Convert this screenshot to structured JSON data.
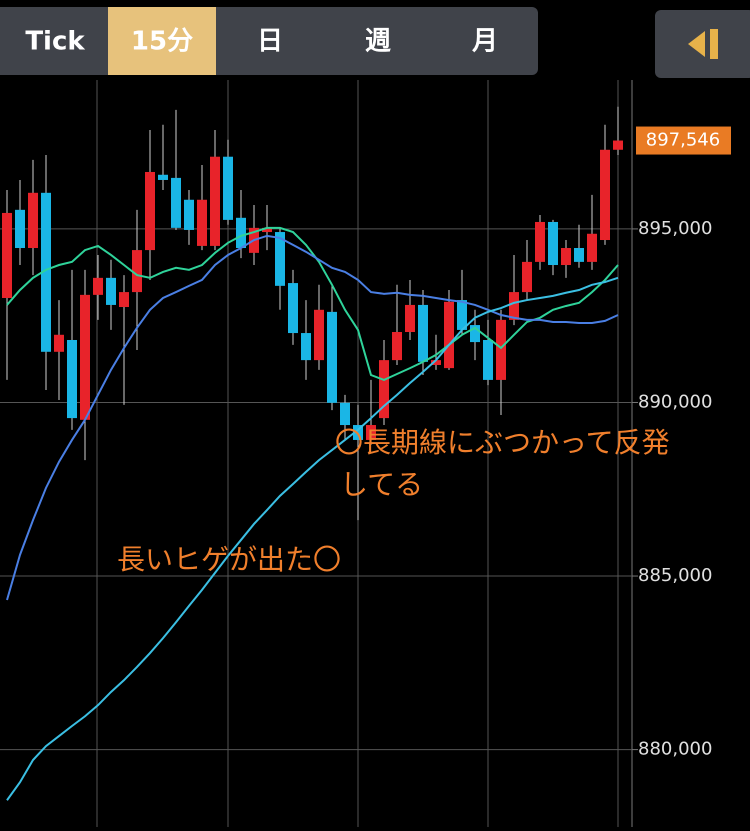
{
  "toolbar": {
    "tabs": [
      "Tick",
      "15分",
      "日",
      "週",
      "月"
    ]
  },
  "chart_data": {
    "type": "candlestick",
    "ylim": [
      877770,
      899290
    ],
    "yticks": [
      {
        "value": 895000,
        "label": "895,000"
      },
      {
        "value": 890000,
        "label": "890,000"
      },
      {
        "value": 885000,
        "label": "885,000"
      },
      {
        "value": 880000,
        "label": "880,000"
      }
    ],
    "grid": true,
    "up_color": "#e8232a",
    "down_color": "#1ab6e6",
    "open": [
      893010,
      895550,
      894450,
      896040,
      891460,
      891800,
      889500,
      893100,
      893590,
      892750,
      893180,
      894390,
      896560,
      896470,
      895840,
      894510,
      894510,
      897080,
      895320,
      894310,
      894910,
      894910,
      893440,
      892000,
      891220,
      892610,
      889990,
      889350,
      888920,
      889550,
      891220,
      892030,
      892810,
      891080,
      890990,
      892950,
      892230,
      891800,
      890650,
      892380,
      893180,
      894050,
      895200,
      893960,
      894450,
      894050,
      894680,
      897280
    ],
    "high": [
      896120,
      896410,
      896990,
      897130,
      892950,
      893820,
      893820,
      894250,
      894110,
      893670,
      895550,
      897850,
      898000,
      898430,
      896120,
      896840,
      897850,
      897570,
      896120,
      895690,
      895690,
      895030,
      893820,
      892950,
      893390,
      893390,
      890220,
      889930,
      890650,
      891800,
      893390,
      893530,
      893240,
      891950,
      893240,
      893820,
      892670,
      892380,
      892670,
      894250,
      894680,
      895400,
      895260,
      894680,
      895120,
      895980,
      898000,
      898520
    ],
    "low": [
      890650,
      893960,
      893670,
      890360,
      890070,
      889210,
      888340,
      892380,
      892090,
      889930,
      891510,
      893530,
      896120,
      894970,
      894540,
      894390,
      894390,
      895120,
      894160,
      893960,
      894390,
      892670,
      891660,
      890650,
      890940,
      889780,
      888920,
      886610,
      888780,
      889350,
      891080,
      891800,
      890790,
      890940,
      890940,
      891950,
      891220,
      890500,
      889640,
      892230,
      892950,
      893820,
      893670,
      893590,
      893880,
      893820,
      894540,
      897130
    ],
    "close": [
      895460,
      894450,
      896040,
      891460,
      891950,
      889550,
      893100,
      893590,
      892810,
      893180,
      894390,
      896640,
      896410,
      895030,
      894970,
      895840,
      897080,
      895260,
      894450,
      895030,
      895030,
      893360,
      892000,
      891220,
      892670,
      889990,
      889350,
      888920,
      889350,
      891220,
      892030,
      892810,
      891170,
      891220,
      892900,
      892090,
      891740,
      890650,
      892380,
      893180,
      894050,
      895200,
      893960,
      894450,
      894050,
      894860,
      897280,
      897546
    ],
    "series": [
      {
        "color": "#2fd39a",
        "values": [
          892810,
          893240,
          893590,
          893820,
          893960,
          894050,
          894390,
          894510,
          894250,
          893960,
          893670,
          893590,
          893760,
          893880,
          893820,
          893960,
          894310,
          894600,
          894800,
          894910,
          895030,
          895030,
          894910,
          894540,
          894050,
          893390,
          892670,
          892090,
          890790,
          890650,
          890820,
          890990,
          891170,
          891370,
          891660,
          891950,
          892150,
          891860,
          891570,
          891950,
          892320,
          892440,
          892670,
          892780,
          892870,
          893180,
          893530,
          893960
        ]
      },
      {
        "color": "#4a7fe4",
        "values": [
          884310,
          885610,
          886610,
          887540,
          888290,
          888920,
          889500,
          890220,
          890940,
          891570,
          892150,
          892670,
          893010,
          893180,
          893360,
          893530,
          893960,
          894250,
          894450,
          894680,
          894800,
          894740,
          894540,
          894340,
          894110,
          893880,
          893760,
          893530,
          893180,
          893130,
          893160,
          893100,
          893070,
          893010,
          892950,
          892900,
          892810,
          892670,
          892520,
          892440,
          892380,
          892380,
          892320,
          892320,
          892290,
          892290,
          892350,
          892520
        ]
      },
      {
        "color": "#3bbfe3",
        "values": [
          878540,
          879060,
          879700,
          880100,
          880390,
          880680,
          880960,
          881280,
          881660,
          882000,
          882380,
          882780,
          883210,
          883670,
          884140,
          884600,
          885090,
          885580,
          886040,
          886500,
          886900,
          887310,
          887650,
          888000,
          888340,
          888630,
          888920,
          889210,
          889550,
          889900,
          890220,
          890560,
          890880,
          891220,
          891660,
          892090,
          892440,
          892610,
          892720,
          892870,
          892950,
          893010,
          893070,
          893160,
          893240,
          893390,
          893470,
          893590
        ]
      }
    ],
    "last_price": {
      "value": 897546,
      "label": "897,546"
    },
    "annotations": [
      "〇長期線にぶつかって反発",
      "してる",
      "長いヒゲが出た〇"
    ]
  }
}
